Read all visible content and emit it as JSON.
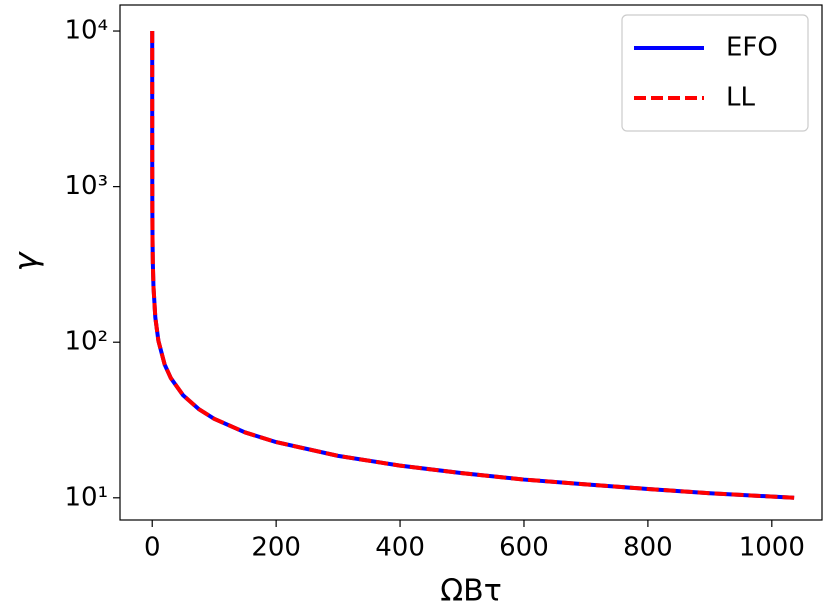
{
  "chart_data": {
    "type": "line",
    "xlabel": "ΩBτ",
    "ylabel": "γ",
    "x": [
      0,
      0.01,
      0.05,
      0.2,
      0.5,
      1,
      2,
      5,
      10,
      20,
      30,
      50,
      75,
      100,
      150,
      200,
      300,
      400,
      500,
      600,
      700,
      800,
      900,
      1036
    ],
    "series": [
      {
        "name": "EFO",
        "color": "#0000ff",
        "dash": false,
        "values": [
          10000,
          3064,
          1425,
          718,
          455,
          322,
          228,
          144,
          102,
          72,
          58.8,
          45.5,
          37.2,
          32.2,
          26.3,
          22.8,
          18.6,
          16.1,
          14.4,
          13.1,
          12.2,
          11.4,
          10.7,
          10.0
        ]
      },
      {
        "name": "LL",
        "color": "#ff0000",
        "dash": true,
        "values": [
          10000,
          3064,
          1425,
          718,
          455,
          322,
          228,
          144,
          102,
          72,
          58.8,
          45.5,
          37.2,
          32.2,
          26.3,
          22.8,
          18.6,
          16.1,
          14.4,
          13.1,
          12.2,
          11.4,
          10.7,
          10.0
        ]
      }
    ],
    "xlim": [
      -52,
      1081
    ],
    "xticks": [
      0,
      200,
      400,
      600,
      800,
      1000
    ],
    "ylim": [
      7.2,
      14700
    ],
    "ylog": true,
    "yticks": [
      {
        "value": 10,
        "label": "10¹"
      },
      {
        "value": 100,
        "label": "10²"
      },
      {
        "value": 1000,
        "label": "10³"
      },
      {
        "value": 10000,
        "label": "10⁴"
      }
    ],
    "legend": "upper right"
  }
}
